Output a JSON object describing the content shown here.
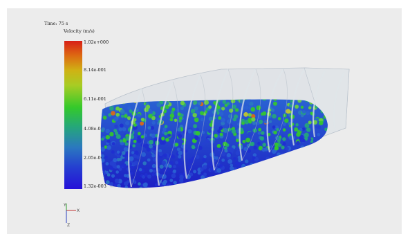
{
  "overlay": {
    "time_label": "Time: 75 s",
    "legend_title": "Velocity (m/s)",
    "ticks": [
      "1.02e+000",
      "8.14e-001",
      "6.11e-001",
      "4.08e-001",
      "2.05e-001",
      "1.32e-003"
    ]
  },
  "colors": {
    "background": "#ececec",
    "particle_low": "#2540d0",
    "particle_mid": "#34c92b",
    "particle_high": "#d81f17",
    "shell": "#c9d3dc"
  },
  "axes": {
    "x_label": "X",
    "y_label": "Y",
    "z_label": "Z"
  }
}
